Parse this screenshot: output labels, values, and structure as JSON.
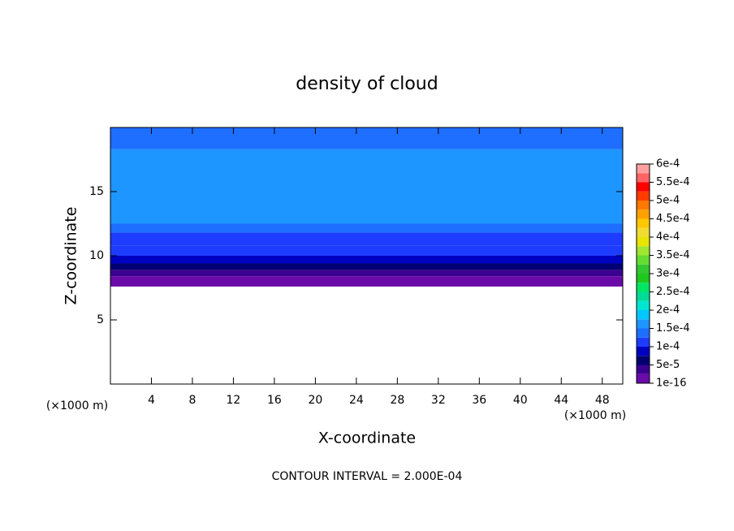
{
  "chart_data": {
    "type": "contour",
    "title": "density of cloud",
    "x_label": "X-coordinate",
    "y_label": "Z-coordinate",
    "x_unit": "(×1000 m)",
    "y_unit": "(×1000 m)",
    "footer": "CONTOUR INTERVAL = 2.000E-04",
    "xlim": [
      0,
      50
    ],
    "ylim": [
      0,
      20
    ],
    "xticks": [
      4,
      8,
      12,
      16,
      20,
      24,
      28,
      32,
      36,
      40,
      44,
      48
    ],
    "yticks": [
      5,
      10,
      15
    ],
    "bands": {
      "z": [
        7.6,
        8.4,
        8.9,
        9.4,
        10,
        10.8,
        11.8,
        12.5,
        18.3,
        20
      ],
      "values": [
        1e-05,
        3e-05,
        6e-05,
        8e-05,
        0.000105,
        0.00012,
        0.000135,
        0.000155,
        0.00014
      ]
    },
    "colorbar": {
      "ticks": [
        {
          "value": 1e-16,
          "label": "1e-16"
        },
        {
          "value": 5e-05,
          "label": "5e-5"
        },
        {
          "value": 0.0001,
          "label": "1e-4"
        },
        {
          "value": 0.00015,
          "label": "1.5e-4"
        },
        {
          "value": 0.0002,
          "label": "2e-4"
        },
        {
          "value": 0.00025,
          "label": "2.5e-4"
        },
        {
          "value": 0.0003,
          "label": "3e-4"
        },
        {
          "value": 0.00035,
          "label": "3.5e-4"
        },
        {
          "value": 0.0004,
          "label": "4e-4"
        },
        {
          "value": 0.00045,
          "label": "4.5e-4"
        },
        {
          "value": 0.0005,
          "label": "5e-4"
        },
        {
          "value": 0.00055,
          "label": "5.5e-4"
        },
        {
          "value": 0.0006,
          "label": "6e-4"
        }
      ],
      "colors": [
        "#6a0aa8",
        "#3c0090",
        "#000070",
        "#0000c0",
        "#1e3cff",
        "#1e6eff",
        "#1e96ff",
        "#00c8ff",
        "#00e6d2",
        "#00dc96",
        "#00e664",
        "#1ec81e",
        "#32c832",
        "#64dc32",
        "#a0e632",
        "#e6e600",
        "#f0dc32",
        "#ffc800",
        "#ffa000",
        "#ff7800",
        "#ff3c00",
        "#ff0000",
        "#ff6464",
        "#ffa0a0"
      ]
    }
  }
}
